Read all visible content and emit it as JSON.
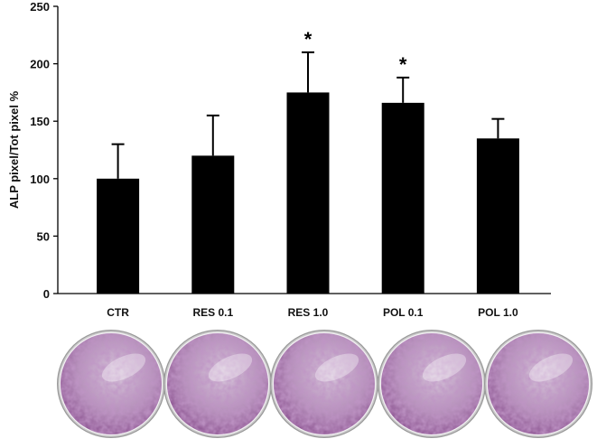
{
  "chart_data": {
    "type": "bar",
    "categories": [
      "CTR",
      "RES 0.1",
      "RES 1.0",
      "POL 0.1",
      "POL 1.0"
    ],
    "values": [
      100,
      120,
      175,
      166,
      135
    ],
    "errors": [
      30,
      35,
      35,
      22,
      17
    ],
    "significance": [
      "",
      "",
      "*",
      "*",
      ""
    ],
    "ylabel": "ALP pixel/Tot pixel %",
    "ylim": [
      0,
      250
    ],
    "yticks": [
      "0",
      "50",
      "100",
      "150",
      "200",
      "250"
    ],
    "bar_color": "#000000",
    "grid": false
  },
  "wells": {
    "count": 5,
    "color_primary": "#8a4f8f",
    "color_light": "#d9c8dc"
  }
}
